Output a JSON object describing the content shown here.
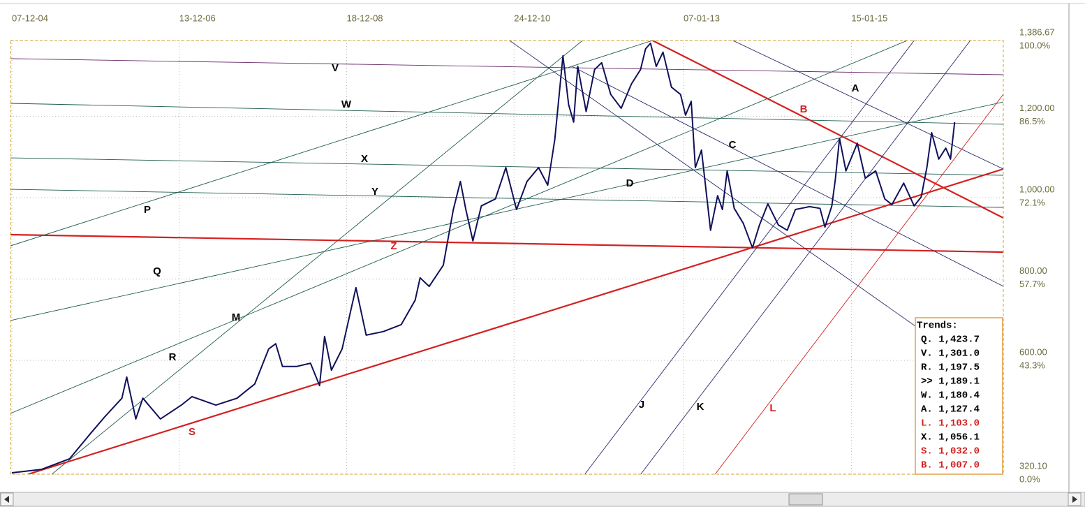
{
  "chart_data": {
    "type": "line",
    "xlim": [
      "2004-12-01",
      "2016-11-13"
    ],
    "ylim": [
      320.1,
      1386.67
    ],
    "xticks": [
      {
        "value": "2004-12-07",
        "label": "07-12-04"
      },
      {
        "value": "2006-12-13",
        "label": "13-12-06"
      },
      {
        "value": "2008-12-18",
        "label": "18-12-08"
      },
      {
        "value": "2010-12-24",
        "label": "24-12-10"
      },
      {
        "value": "2013-01-07",
        "label": "07-01-13"
      },
      {
        "value": "2015-01-15",
        "label": "15-01-15"
      }
    ],
    "yticks": [
      {
        "value": 1386.67,
        "label": "1,386.67",
        "sublabel": "100.0%"
      },
      {
        "value": 1200,
        "label": "1,200.00",
        "sublabel": "86.5%"
      },
      {
        "value": 1000,
        "label": "1,000.00",
        "sublabel": "72.1%"
      },
      {
        "value": 800,
        "label": "800.00",
        "sublabel": "57.7%"
      },
      {
        "value": 600,
        "label": "600.00",
        "sublabel": "43.3%"
      },
      {
        "value": 320.1,
        "label": "320.10",
        "sublabel": "0.0%"
      }
    ],
    "grid": true,
    "color": "#10105a",
    "x": [
      "2004-12-07",
      "2005-04-17",
      "2005-08-18",
      "2005-11-19",
      "2006-01-19",
      "2006-04-05",
      "2006-04-26",
      "2006-06-05",
      "2006-07-06",
      "2006-09-21",
      "2006-12-22",
      "2007-02-07",
      "2007-05-23",
      "2007-08-24",
      "2007-11-10",
      "2008-01-10",
      "2008-02-10",
      "2008-03-11",
      "2008-05-11",
      "2008-07-12",
      "2008-08-21",
      "2008-09-12",
      "2008-10-12",
      "2008-11-28",
      "2009-01-28",
      "2009-03-14",
      "2009-05-29",
      "2009-08-15",
      "2009-10-15",
      "2009-11-06",
      "2009-12-16",
      "2010-02-16",
      "2010-04-01",
      "2010-05-02",
      "2010-05-26",
      "2010-06-26",
      "2010-08-02",
      "2010-10-03",
      "2010-11-18",
      "2011-01-04",
      "2011-02-19",
      "2011-04-11",
      "2011-05-21",
      "2011-06-21",
      "2011-07-06",
      "2011-07-27",
      "2011-08-21",
      "2011-09-12",
      "2011-09-30",
      "2011-11-06",
      "2011-12-13",
      "2012-01-13",
      "2012-02-22",
      "2012-04-08",
      "2012-05-23",
      "2012-07-02",
      "2012-07-24",
      "2012-08-15",
      "2012-09-09",
      "2012-10-09",
      "2012-11-15",
      "2012-12-25",
      "2013-01-16",
      "2013-02-10",
      "2013-02-28",
      "2013-03-27",
      "2013-05-06",
      "2013-06-06",
      "2013-06-27",
      "2013-07-18",
      "2013-08-18",
      "2013-09-27",
      "2013-11-06",
      "2013-12-07",
      "2014-01-13",
      "2014-02-28",
      "2014-04-08",
      "2014-05-14",
      "2014-07-15",
      "2014-08-30",
      "2014-09-21",
      "2014-10-21",
      "2014-11-06",
      "2014-11-24",
      "2014-12-22",
      "2015-02-10",
      "2015-03-17",
      "2015-05-02",
      "2015-06-11",
      "2015-07-12",
      "2015-09-02",
      "2015-10-18",
      "2015-11-18",
      "2015-12-13",
      "2016-01-03",
      "2016-02-03",
      "2016-03-05",
      "2016-03-26",
      "2016-04-13"
    ],
    "values": [
      323.5,
      332,
      358,
      421,
      461,
      507,
      559,
      456,
      507,
      456,
      490,
      511,
      490,
      507,
      542,
      628,
      641,
      585,
      585,
      593,
      538,
      659,
      576,
      628,
      779,
      662,
      671,
      688,
      748,
      803,
      782,
      834,
      971,
      1040,
      971,
      894,
      980,
      997,
      1074,
      971,
      1040,
      1074,
      1031,
      1143,
      1229,
      1349,
      1229,
      1186,
      1323,
      1212,
      1315,
      1332,
      1254,
      1220,
      1280,
      1315,
      1366,
      1380,
      1323,
      1358,
      1272,
      1254,
      1203,
      1237,
      1074,
      1117,
      920,
      1005,
      971,
      1066,
      974,
      937,
      877,
      933,
      985,
      933,
      920,
      971,
      978,
      974,
      928,
      980,
      1048,
      1146,
      1066,
      1134,
      1048,
      1066,
      997,
      983,
      1036,
      980,
      1002,
      1074,
      1160,
      1095,
      1122,
      1095,
      1186
    ],
    "trend_lines": [
      {
        "label": "V",
        "color": "#6a2a6a",
        "x": [
          "2004-12-01",
          "2016-11-13"
        ],
        "values": [
          1342.0,
          1302.5
        ]
      },
      {
        "label": "W",
        "color": "#1f5c4f",
        "x": [
          "2004-12-01",
          "2016-11-13"
        ],
        "values": [
          1232.1,
          1180.6
        ]
      },
      {
        "label": "X",
        "color": "#1f5c4f",
        "x": [
          "2004-12-01",
          "2016-11-13"
        ],
        "values": [
          1098.1,
          1055.2
        ]
      },
      {
        "label": "Y",
        "color": "#1f5c4f",
        "x": [
          "2004-12-01",
          "2016-11-13"
        ],
        "values": [
          1020.8,
          976.2
        ]
      },
      {
        "label": "Z",
        "color": "#d42020",
        "x": [
          "2004-12-01",
          "2016-11-13"
        ],
        "values": [
          909.2,
          866.3
        ]
      },
      {
        "label": "P",
        "color": "#1f5c4f",
        "x": [
          "2004-12-01",
          "2012-08-24"
        ],
        "values": [
          881.7,
          1386.7
        ]
      },
      {
        "label": "Q",
        "color": "#1f5c4f",
        "x": [
          "2004-12-01",
          "2016-11-13"
        ],
        "values": [
          698.0,
          1235.5
        ]
      },
      {
        "label": "R",
        "color": "#1f5c4f",
        "x": [
          "2004-12-01",
          "2015-09-18"
        ],
        "values": [
          469.5,
          1386.7
        ]
      },
      {
        "label": "M",
        "color": "#1f5c4f",
        "x": [
          "2005-06-01",
          "2011-10-21"
        ],
        "values": [
          320.1,
          1386.7
        ]
      },
      {
        "label": "S",
        "color": "#d42020",
        "x": [
          "2005-02-17",
          "2016-11-13"
        ],
        "values": [
          320.1,
          1070.6
        ]
      },
      {
        "label": "A",
        "color": "#2a2a6a",
        "x": [
          "2013-08-12",
          "2016-11-13"
        ],
        "values": [
          1386.7,
          1070.6
        ]
      },
      {
        "label": "B",
        "color": "#d42020",
        "x": [
          "2012-08-24",
          "2016-11-13"
        ],
        "values": [
          1386.7,
          950.4
        ]
      },
      {
        "label": "C",
        "color": "#2a2a6a",
        "x": [
          "2011-09-05",
          "2016-11-13"
        ],
        "values": [
          1323.1,
          782.1
        ]
      },
      {
        "label": "D",
        "color": "#2a2a6a",
        "x": [
          "2010-12-04",
          "2015-12-19"
        ],
        "values": [
          1386.7,
          661.9
        ]
      },
      {
        "label": "J",
        "color": "#2a2a6a",
        "x": [
          "2011-10-31",
          "2015-10-18"
        ],
        "values": [
          320.1,
          1386.7
        ]
      },
      {
        "label": "K",
        "color": "#2a2a6a",
        "x": [
          "2012-07-03",
          "2016-06-21"
        ],
        "values": [
          320.1,
          1386.7
        ]
      },
      {
        "label": "L",
        "color": "#d42020",
        "x": [
          "2013-05-26",
          "2016-11-13"
        ],
        "values": [
          320.1,
          1254.4
        ]
      }
    ]
  },
  "trends": {
    "title": "Trends:",
    "rows": [
      {
        "text": "Q. 1,423.7",
        "color": "#000000"
      },
      {
        "text": "V. 1,301.0",
        "color": "#000000"
      },
      {
        "text": "R. 1,197.5",
        "color": "#000000"
      },
      {
        "text": ">> 1,189.1",
        "color": "#000000"
      },
      {
        "text": "W. 1,180.4",
        "color": "#000000"
      },
      {
        "text": "A. 1,127.4",
        "color": "#000000"
      },
      {
        "text": "L. 1,103.0",
        "color": "#d42020"
      },
      {
        "text": "X. 1,056.1",
        "color": "#000000"
      },
      {
        "text": "S. 1,032.0",
        "color": "#d42020"
      },
      {
        "text": "B. 1,007.0",
        "color": "#d42020"
      }
    ]
  }
}
